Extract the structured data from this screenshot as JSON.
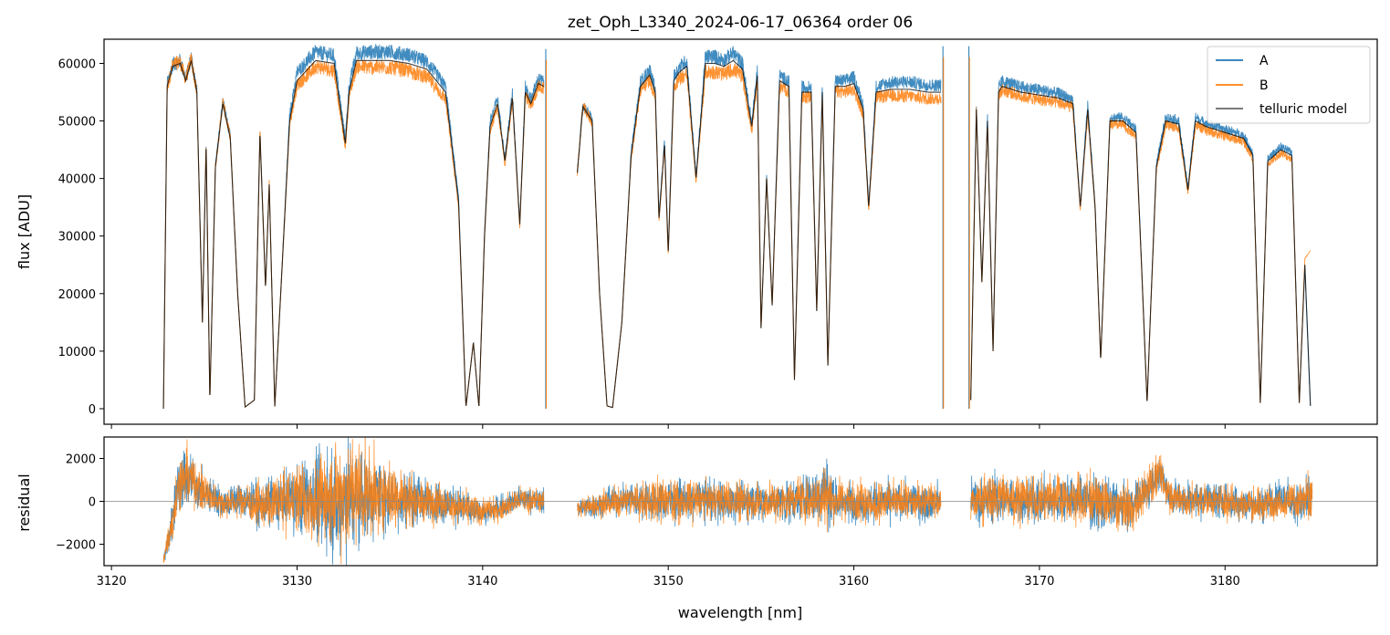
{
  "title": "zet_Oph_L3340_2024-06-17_06364  order 06",
  "colors": {
    "A": "#1f77b4",
    "B": "#ff7f0e",
    "model": "#000000",
    "zero_line": "#888888"
  },
  "chart_data": [
    {
      "panel": "top",
      "type": "line",
      "title": "zet_Oph_L3340_2024-06-17_06364  order 06",
      "xlabel": "",
      "ylabel": "flux [ADU]",
      "xlim": [
        3119.6,
        3188.2
      ],
      "ylim": [
        -2700,
        64200
      ],
      "xticks": [
        3120,
        3130,
        3140,
        3150,
        3160,
        3170,
        3180
      ],
      "xtick_labels_shown": false,
      "yticks": [
        0,
        10000,
        20000,
        30000,
        40000,
        50000,
        60000
      ],
      "ytick_labels": [
        "0",
        "10000",
        "20000",
        "30000",
        "40000",
        "50000",
        "60000"
      ],
      "legend": {
        "placement": "upper right",
        "entries": [
          "A",
          "B",
          "telluric model"
        ]
      },
      "segments": [
        {
          "x": [
            3122.8,
            3123.0,
            3123.3,
            3123.7,
            3124.0,
            3124.3,
            3124.6,
            3124.9,
            3125.1,
            3125.3,
            3125.6,
            3126.0,
            3126.4,
            3126.8,
            3127.2,
            3127.7,
            3128.0,
            3128.3,
            3128.5,
            3128.8,
            3129.2,
            3129.6,
            3130.0,
            3131.0,
            3132.0,
            3132.6,
            3132.8,
            3133.2,
            3134.0,
            3135.0,
            3136.0,
            3137.0,
            3138.0,
            3138.7,
            3139.1,
            3139.5,
            3139.8,
            3140.1,
            3140.4,
            3140.8,
            3141.2,
            3141.6,
            3142.0,
            3142.3,
            3142.6,
            3143.0,
            3143.3
          ],
          "model": [
            0,
            56000,
            59500,
            60000,
            57000,
            60500,
            55000,
            15000,
            46000,
            1500,
            42000,
            53000,
            47000,
            20000,
            300,
            1500,
            48000,
            21000,
            39000,
            400,
            25000,
            50000,
            57000,
            60500,
            60000,
            46000,
            55000,
            60500,
            60500,
            60500,
            60000,
            59000,
            55000,
            36000,
            300,
            11500,
            200,
            30000,
            49000,
            53000,
            43000,
            54000,
            32000,
            55000,
            53000,
            56500,
            56000
          ],
          "a_offset": [
            0,
            500,
            300,
            500,
            300,
            600,
            300,
            0,
            300,
            0,
            200,
            600,
            300,
            0,
            0,
            0,
            500,
            0,
            300,
            0,
            300,
            1000,
            1500,
            1500,
            1300,
            800,
            1000,
            1300,
            1500,
            1500,
            1500,
            1300,
            1000,
            700,
            0,
            0,
            0,
            500,
            900,
            900,
            600,
            900,
            400,
            900,
            800,
            800,
            800
          ],
          "b_offset": [
            0,
            -300,
            200,
            300,
            200,
            300,
            -200,
            0,
            200,
            0,
            0,
            300,
            200,
            0,
            0,
            0,
            200,
            0,
            200,
            0,
            0,
            -500,
            -800,
            -1000,
            -1200,
            -600,
            -800,
            -1000,
            -1200,
            -1200,
            -1300,
            -1400,
            -1200,
            -800,
            0,
            0,
            0,
            -300,
            -500,
            -500,
            -400,
            -500,
            -300,
            -500,
            -500,
            -500,
            -500
          ]
        },
        {
          "x": [
            3145.1,
            3145.4,
            3145.9,
            3146.3,
            3146.7,
            3147.0,
            3147.5,
            3148.0,
            3148.5,
            3149.0,
            3149.3,
            3149.5,
            3149.8,
            3150.0,
            3150.3,
            3150.6,
            3151.0,
            3151.5,
            3152.0,
            3152.5,
            3153.0,
            3153.5,
            3154.0,
            3154.5,
            3154.8,
            3155.0,
            3155.3,
            3155.6,
            3156.0,
            3156.5,
            3156.8,
            3157.2,
            3157.7,
            3158.0,
            3158.3,
            3158.6,
            3159.0,
            3159.5,
            3160.0,
            3160.5,
            3160.8,
            3161.2,
            3162.0,
            3163.0,
            3164.0,
            3164.7
          ],
          "model": [
            41000,
            52500,
            50000,
            20000,
            500,
            200,
            15000,
            44000,
            56000,
            58000,
            55000,
            33000,
            46000,
            27000,
            57000,
            58500,
            59500,
            40000,
            60000,
            60000,
            59500,
            60500,
            59000,
            49000,
            58000,
            14000,
            40000,
            18000,
            57000,
            56000,
            5000,
            55000,
            55000,
            17000,
            55000,
            7500,
            56000,
            56000,
            56500,
            52000,
            35000,
            55000,
            55500,
            55500,
            55000,
            55000
          ],
          "a_offset": [
            0,
            300,
            300,
            0,
            0,
            0,
            0,
            500,
            800,
            800,
            600,
            300,
            500,
            200,
            800,
            800,
            1000,
            400,
            1200,
            1200,
            1100,
            1300,
            1000,
            600,
            800,
            0,
            400,
            0,
            900,
            800,
            0,
            900,
            900,
            0,
            900,
            0,
            1000,
            1000,
            1100,
            900,
            300,
            1000,
            1200,
            1300,
            1200,
            1200
          ],
          "b_offset": [
            0,
            0,
            -200,
            0,
            0,
            0,
            0,
            -500,
            -700,
            -900,
            -700,
            -300,
            -500,
            -300,
            -1100,
            -1100,
            -1300,
            -500,
            -1500,
            -1500,
            -1400,
            -1500,
            -1300,
            -800,
            -1000,
            0,
            -400,
            0,
            -1000,
            -1000,
            0,
            -900,
            -900,
            0,
            -900,
            0,
            -900,
            -900,
            -1000,
            -900,
            -400,
            -900,
            -1100,
            -1200,
            -1100,
            -1100
          ]
        },
        {
          "x": [
            3166.3,
            3166.6,
            3166.9,
            3167.2,
            3167.5,
            3167.8,
            3168.0,
            3168.5,
            3169.0,
            3170.0,
            3171.0,
            3171.8,
            3172.2,
            3172.6,
            3173.0,
            3173.3,
            3173.8,
            3174.5,
            3175.2,
            3175.5,
            3175.8,
            3176.0,
            3176.3,
            3176.8,
            3177.5,
            3178.0,
            3178.4,
            3179.0,
            3180.0,
            3181.0,
            3181.5,
            3181.9,
            3182.3,
            3183.0,
            3183.6,
            3184.0,
            3184.3,
            3184.6
          ],
          "model": [
            1500,
            52000,
            22000,
            50000,
            10000,
            55000,
            56000,
            55500,
            55000,
            54500,
            54000,
            53000,
            35000,
            52000,
            35000,
            8500,
            50000,
            50000,
            48000,
            25000,
            1000,
            18000,
            42000,
            50000,
            49500,
            38000,
            50000,
            49000,
            48000,
            47000,
            44000,
            1000,
            43000,
            45000,
            44000,
            1000,
            25000,
            500
          ],
          "a_offset": [
            0,
            500,
            200,
            500,
            0,
            800,
            900,
            900,
            900,
            900,
            800,
            700,
            300,
            700,
            300,
            0,
            600,
            600,
            600,
            300,
            0,
            200,
            400,
            600,
            600,
            400,
            600,
            600,
            500,
            500,
            400,
            0,
            400,
            500,
            500,
            0,
            200,
            0
          ],
          "b_offset": [
            0,
            -300,
            0,
            -300,
            0,
            -500,
            -600,
            -600,
            -700,
            -800,
            -800,
            -700,
            -300,
            -700,
            -300,
            0,
            -600,
            -700,
            -700,
            -300,
            0,
            -200,
            -500,
            -700,
            -700,
            -500,
            -700,
            -700,
            -600,
            -600,
            -500,
            0,
            -500,
            -600,
            -600,
            0,
            1000,
            27000
          ]
        }
      ],
      "spikes": [
        {
          "x": 3143.4,
          "series": "A",
          "from": 0,
          "to": 62500
        },
        {
          "x": 3164.8,
          "series": "A",
          "from": 0,
          "to": 63000
        },
        {
          "x": 3166.2,
          "series": "A",
          "from": 0,
          "to": 63000
        }
      ]
    },
    {
      "panel": "bottom",
      "type": "line",
      "xlabel": "wavelength [nm]",
      "ylabel": "residual",
      "xlim": [
        3119.6,
        3188.2
      ],
      "ylim": [
        -3000,
        3000
      ],
      "xticks": [
        3120,
        3130,
        3140,
        3150,
        3160,
        3170,
        3180
      ],
      "xtick_labels": [
        "3120",
        "3130",
        "3140",
        "3150",
        "3160",
        "3170",
        "3180"
      ],
      "yticks": [
        -2000,
        0,
        2000
      ],
      "ytick_labels": [
        "−2000",
        "0",
        "2000"
      ],
      "zero_line": 0,
      "segments": [
        {
          "x": [
            3122.8,
            3123.2,
            3123.6,
            3124.0,
            3124.5,
            3125.0,
            3125.5,
            3126.0,
            3127.0,
            3128.0,
            3129.0,
            3130.0,
            3131.0,
            3132.0,
            3133.0,
            3134.0,
            3135.0,
            3136.0,
            3137.0,
            3138.0,
            3139.0,
            3140.0,
            3141.0,
            3142.0,
            3143.3
          ],
          "mean": [
            -2800,
            -1200,
            800,
            1200,
            800,
            400,
            200,
            -100,
            100,
            -200,
            0,
            200,
            0,
            100,
            300,
            300,
            200,
            100,
            0,
            -100,
            -300,
            -500,
            -300,
            100,
            0
          ],
          "amp": [
            200,
            900,
            1200,
            1300,
            1000,
            800,
            700,
            600,
            700,
            900,
            1100,
            1400,
            1800,
            2200,
            2400,
            1700,
            1300,
            1100,
            900,
            800,
            700,
            500,
            500,
            500,
            500
          ]
        },
        {
          "x": [
            3145.1,
            3146.0,
            3147.0,
            3148.0,
            3149.0,
            3150.0,
            3151.0,
            3152.0,
            3153.0,
            3154.0,
            3155.0,
            3156.0,
            3157.0,
            3158.0,
            3158.5,
            3159.0,
            3160.0,
            3161.0,
            3162.0,
            3163.0,
            3164.7
          ],
          "mean": [
            -300,
            -200,
            0,
            100,
            0,
            100,
            0,
            100,
            0,
            0,
            0,
            0,
            100,
            200,
            400,
            0,
            0,
            -100,
            0,
            0,
            0
          ],
          "amp": [
            400,
            500,
            600,
            700,
            800,
            900,
            800,
            800,
            800,
            800,
            800,
            800,
            900,
            1100,
            1500,
            900,
            800,
            800,
            800,
            800,
            700
          ]
        },
        {
          "x": [
            3166.3,
            3167.0,
            3168.0,
            3169.0,
            3170.0,
            3171.0,
            3172.0,
            3173.0,
            3174.0,
            3175.0,
            3176.0,
            3176.5,
            3177.0,
            3178.0,
            3179.0,
            3180.0,
            3181.0,
            3182.0,
            3183.0,
            3184.0,
            3184.7
          ],
          "mean": [
            0,
            100,
            200,
            100,
            0,
            200,
            100,
            0,
            -200,
            -300,
            800,
            1300,
            300,
            0,
            100,
            0,
            -100,
            -200,
            100,
            0,
            0
          ],
          "amp": [
            900,
            1000,
            1000,
            900,
            900,
            1000,
            1000,
            1100,
            1000,
            900,
            900,
            700,
            700,
            700,
            700,
            700,
            700,
            700,
            700,
            900,
            1200
          ]
        }
      ]
    }
  ]
}
